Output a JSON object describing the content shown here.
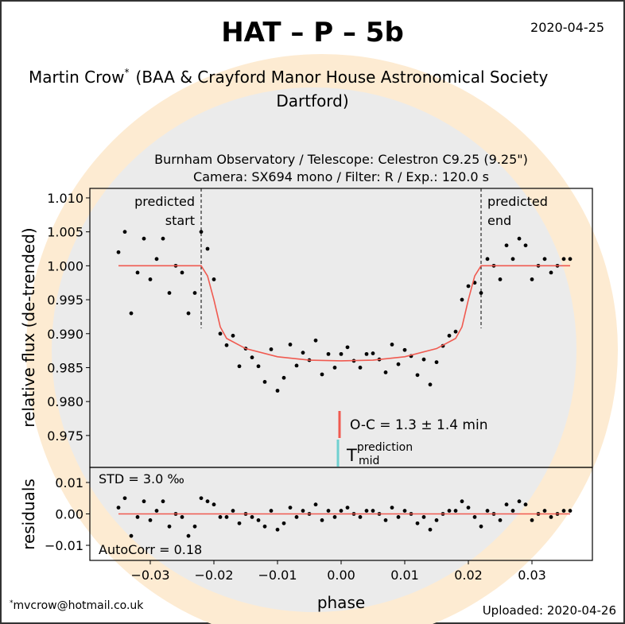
{
  "header": {
    "title": "HAT – P – 5b",
    "date": "2020-04-25",
    "observer": "Martin Crow",
    "observer_mark": "*",
    "affiliation": "(BAA & Crayford Manor House Astronomical Society",
    "affiliation_2": "Dartford)"
  },
  "footer": {
    "mark": "*",
    "email": "mvcrow@hotmail.co.uk",
    "uploaded": "Uploaded: 2020-04-26"
  },
  "chart_data": [
    {
      "type": "scatter",
      "title": [
        "Burnham Observatory / Telescope: Celestron C9.25 (9.25\")",
        "Camera: SX694 mono / Filter: R / Exp.: 120.0 s"
      ],
      "ylabel": "relative flux (de-trended)",
      "xlim": [
        -0.0395,
        0.0395
      ],
      "ylim": [
        0.9703,
        1.0114
      ],
      "yticks": [
        {
          "value": 1.01,
          "label": "1.010"
        },
        1.005,
        {
          "value": 1.0,
          "label": "1.000"
        },
        0.995,
        {
          "value": 0.99,
          "label": "0.990"
        },
        0.985,
        {
          "value": 0.98,
          "label": "0.980"
        },
        0.975
      ],
      "annotations": {
        "predicted_start": {
          "x": -0.022,
          "lines": [
            "predicted",
            "start"
          ]
        },
        "predicted_end": {
          "x": 0.022,
          "lines": [
            "predicted",
            "end"
          ]
        },
        "o_c": "O-C = 1.3 ± 1.4 min",
        "t_mid": {
          "main": "T",
          "sup": "prediction",
          "sub": "mid"
        }
      },
      "series": [
        {
          "type": "scatter",
          "color": "#000000",
          "x": [
            -0.035,
            -0.034,
            -0.033,
            -0.032,
            -0.031,
            -0.03,
            -0.029,
            -0.028,
            -0.027,
            -0.026,
            -0.025,
            -0.024,
            -0.023,
            -0.022,
            -0.021,
            -0.02,
            -0.019,
            -0.018,
            -0.017,
            -0.016,
            -0.015,
            -0.014,
            -0.013,
            -0.012,
            -0.011,
            -0.01,
            -0.009,
            -0.008,
            -0.007,
            -0.006,
            -0.005,
            -0.004,
            -0.003,
            -0.002,
            -0.001,
            0.0,
            0.001,
            0.002,
            0.003,
            0.004,
            0.005,
            0.006,
            0.007,
            0.008,
            0.009,
            0.01,
            0.011,
            0.012,
            0.013,
            0.014,
            0.015,
            0.016,
            0.017,
            0.018,
            0.019,
            0.02,
            0.021,
            0.022,
            0.023,
            0.024,
            0.025,
            0.026,
            0.027,
            0.028,
            0.029,
            0.03,
            0.031,
            0.032,
            0.033,
            0.034,
            0.035,
            0.036
          ],
          "values": [
            1.002,
            1.005,
            0.993,
            0.999,
            1.004,
            0.998,
            1.001,
            1.004,
            0.996,
            1.0,
            0.999,
            0.993,
            0.996,
            1.005,
            1.0025,
            0.998,
            0.99,
            0.9883,
            0.9897,
            0.9852,
            0.9878,
            0.9865,
            0.9852,
            0.9829,
            0.9877,
            0.9816,
            0.9835,
            0.9884,
            0.9853,
            0.9872,
            0.9861,
            0.989,
            0.984,
            0.987,
            0.985,
            0.987,
            0.988,
            0.986,
            0.985,
            0.987,
            0.9871,
            0.9862,
            0.9843,
            0.9884,
            0.9855,
            0.9876,
            0.9867,
            0.9839,
            0.9862,
            0.9825,
            0.9858,
            0.9882,
            0.9897,
            0.9903,
            0.995,
            0.997,
            0.9975,
            0.996,
            1.001,
            1.0,
            0.998,
            1.003,
            1.001,
            1.004,
            1.003,
            0.998,
            1.0,
            1.001,
            0.999,
            1.0,
            1.001,
            1.001
          ]
        },
        {
          "type": "line",
          "color": "#f05a50",
          "x": [
            -0.035,
            -0.022,
            -0.021,
            -0.02,
            -0.019,
            -0.018,
            -0.015,
            -0.01,
            -0.005,
            0.0,
            0.005,
            0.01,
            0.015,
            0.018,
            0.019,
            0.02,
            0.021,
            0.022,
            0.036
          ],
          "values": [
            1.0,
            1.0,
            0.9985,
            0.995,
            0.991,
            0.9893,
            0.9878,
            0.9866,
            0.9861,
            0.986,
            0.9861,
            0.9866,
            0.9878,
            0.9893,
            0.991,
            0.995,
            0.9985,
            1.0,
            1.0
          ]
        }
      ]
    },
    {
      "type": "scatter",
      "ylabel": "residuals",
      "xlabel": "phase",
      "xlim": [
        -0.0395,
        0.0395
      ],
      "xticks": [
        {
          "value": -0.03,
          "label": "−0.03"
        },
        {
          "value": -0.02,
          "label": "−0.02"
        },
        {
          "value": -0.01,
          "label": "−0.01"
        },
        {
          "value": 0,
          "label": "0.00"
        },
        0.01,
        0.02,
        0.03
      ],
      "ylim": [
        -0.0148,
        0.0148
      ],
      "yticks": [
        0.01,
        {
          "value": 0,
          "label": "0.00"
        },
        {
          "value": -0.01,
          "label": "−0.01"
        }
      ],
      "annotations": {
        "std": "STD = 3.0 ‰",
        "autocorr": "AutoCorr = 0.18"
      },
      "series": [
        {
          "type": "scatter",
          "color": "#000000",
          "x": [
            -0.035,
            -0.034,
            -0.033,
            -0.032,
            -0.031,
            -0.03,
            -0.029,
            -0.028,
            -0.027,
            -0.026,
            -0.025,
            -0.024,
            -0.023,
            -0.022,
            -0.021,
            -0.02,
            -0.019,
            -0.018,
            -0.017,
            -0.016,
            -0.015,
            -0.014,
            -0.013,
            -0.012,
            -0.011,
            -0.01,
            -0.009,
            -0.008,
            -0.007,
            -0.006,
            -0.005,
            -0.004,
            -0.003,
            -0.002,
            -0.001,
            0.0,
            0.001,
            0.002,
            0.003,
            0.004,
            0.005,
            0.006,
            0.007,
            0.008,
            0.009,
            0.01,
            0.011,
            0.012,
            0.013,
            0.014,
            0.015,
            0.016,
            0.017,
            0.018,
            0.019,
            0.02,
            0.021,
            0.022,
            0.023,
            0.024,
            0.025,
            0.026,
            0.027,
            0.028,
            0.029,
            0.03,
            0.031,
            0.032,
            0.033,
            0.034,
            0.035,
            0.036
          ],
          "values": [
            0.002,
            0.005,
            -0.007,
            -0.001,
            0.004,
            -0.002,
            0.001,
            0.004,
            -0.004,
            0,
            -0.001,
            -0.007,
            -0.004,
            0.005,
            0.004,
            0.003,
            -0.001,
            -0.001,
            0.001,
            -0.003,
            0,
            -0.001,
            -0.002,
            -0.004,
            0.001,
            -0.005,
            -0.003,
            0.002,
            -0.001,
            0.001,
            0,
            0.003,
            -0.002,
            0.001,
            -0.001,
            0.001,
            0.002,
            0,
            -0.001,
            0.001,
            0.001,
            0,
            -0.002,
            0.002,
            -0.001,
            0.001,
            0,
            -0.003,
            -0.001,
            -0.005,
            -0.002,
            0,
            0.001,
            0.001,
            0.004,
            0.002,
            -0.001,
            -0.004,
            0.001,
            0,
            -0.002,
            0.003,
            0.001,
            0.004,
            0.003,
            -0.002,
            0,
            0.001,
            -0.001,
            0,
            0.001,
            0.001
          ]
        },
        {
          "type": "line",
          "color": "#f05a50",
          "x": [
            -0.035,
            0.036
          ],
          "values": [
            0,
            0
          ]
        }
      ]
    }
  ]
}
